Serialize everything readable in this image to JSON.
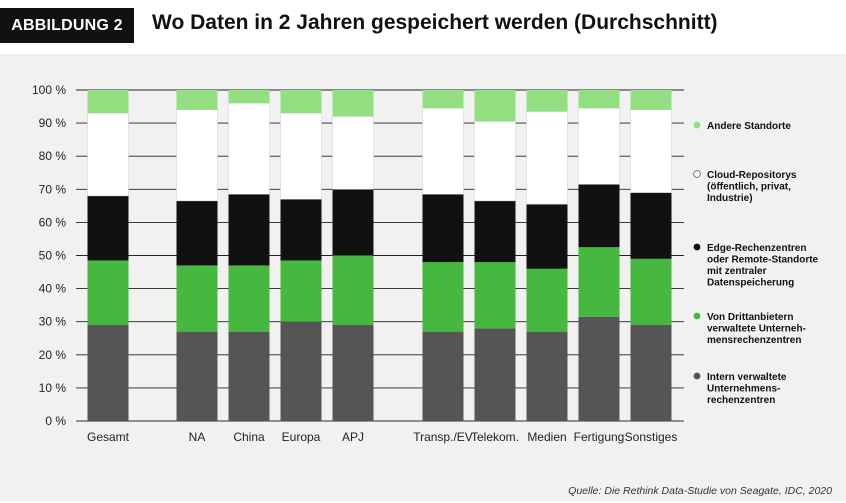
{
  "header": {
    "badge": "ABBILDUNG 2",
    "title": "Wo Daten in 2 Jahren gespeichert werden (Durchschnitt)"
  },
  "source": "Quelle: Die Rethink Data-Studie von Seagate, IDC, 2020",
  "chart_data": {
    "type": "bar",
    "stacked": true,
    "title": "Wo Daten in 2 Jahren gespeichert werden (Durchschnitt)",
    "categories": [
      "Gesamt",
      "NA",
      "China",
      "Europa",
      "APJ",
      "Transp./EV",
      "Telekom.",
      "Medien",
      "Fertigung",
      "Sonstiges"
    ],
    "yticks": [
      "0 %",
      "10 %",
      "20 %",
      "30 %",
      "40 %",
      "50 %",
      "60 %",
      "70 %",
      "80 %",
      "90 %",
      "100 %"
    ],
    "ylim": [
      0,
      100
    ],
    "grid": true,
    "legend_position": "right",
    "series": [
      {
        "name": "Intern verwaltete Unternehmens-rechenzentren",
        "color": "#555555",
        "values": [
          29,
          27,
          27,
          30,
          29,
          27,
          28,
          27,
          31.5,
          29
        ]
      },
      {
        "name": "Von Drittanbietern verwaltete Unternehmensrechenzentren",
        "color": "#47b83f",
        "values": [
          19.5,
          20,
          20,
          18.5,
          21,
          21,
          20,
          19,
          21,
          20
        ]
      },
      {
        "name": "Edge-Rechenzentren oder Remote-Standorte mit zentraler Datenspeicherung",
        "color": "#111111",
        "values": [
          19.5,
          19.5,
          21.5,
          18.5,
          20,
          20.5,
          18.5,
          19.5,
          19,
          20
        ]
      },
      {
        "name": "Cloud-Repositorys (öffentlich, privat, Industrie)",
        "color": "#ffffff",
        "values": [
          25,
          27.5,
          27.5,
          26,
          22,
          26,
          24,
          28,
          23,
          25
        ]
      },
      {
        "name": "Andere Standorte",
        "color": "#94df82",
        "values": [
          7,
          6,
          4,
          7,
          8,
          5.5,
          9.5,
          6.5,
          5.5,
          6
        ]
      }
    ],
    "legend": [
      {
        "label": "Andere Standorte",
        "color": "#94df82"
      },
      {
        "label": "Cloud-Repositorys\n(öffentlich, privat,\nIndustrie)",
        "color": "#ffffff"
      },
      {
        "label": "Edge-Rechenzentren\noder Remote-Standorte\nmit zentraler\nDatenspeicherung",
        "color": "#111111"
      },
      {
        "label": "Von Drittanbietern\nverwaltete Unterneh-\nmensrechenzentren",
        "color": "#47b83f"
      },
      {
        "label": "Intern verwaltete\nUnternehmens-\nrechenzentren",
        "color": "#555555"
      }
    ]
  }
}
